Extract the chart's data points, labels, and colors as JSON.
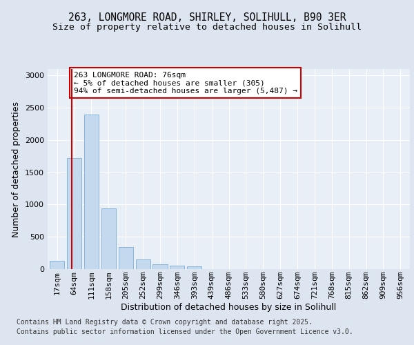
{
  "title_line1": "263, LONGMORE ROAD, SHIRLEY, SOLIHULL, B90 3ER",
  "title_line2": "Size of property relative to detached houses in Solihull",
  "xlabel": "Distribution of detached houses by size in Solihull",
  "ylabel": "Number of detached properties",
  "bar_color": "#c5d9ee",
  "bar_edge_color": "#7aadd4",
  "categories": [
    "17sqm",
    "64sqm",
    "111sqm",
    "158sqm",
    "205sqm",
    "252sqm",
    "299sqm",
    "346sqm",
    "393sqm",
    "439sqm",
    "486sqm",
    "533sqm",
    "580sqm",
    "627sqm",
    "674sqm",
    "721sqm",
    "768sqm",
    "815sqm",
    "862sqm",
    "909sqm",
    "956sqm"
  ],
  "values": [
    130,
    1720,
    2390,
    940,
    340,
    155,
    80,
    50,
    40,
    0,
    0,
    0,
    0,
    0,
    0,
    0,
    0,
    0,
    0,
    0,
    0
  ],
  "red_line_x": 0.85,
  "annotation_text": "263 LONGMORE ROAD: 76sqm\n← 5% of detached houses are smaller (305)\n94% of semi-detached houses are larger (5,487) →",
  "annotation_box_color": "#ffffff",
  "annotation_edge_color": "#cc0000",
  "ylim": [
    0,
    3100
  ],
  "yticks": [
    0,
    500,
    1000,
    1500,
    2000,
    2500,
    3000
  ],
  "footnote_line1": "Contains HM Land Registry data © Crown copyright and database right 2025.",
  "footnote_line2": "Contains public sector information licensed under the Open Government Licence v3.0.",
  "background_color": "#dde6f0",
  "plot_bg_color": "#e8eff7",
  "grid_color": "#ffffff",
  "title_fontsize": 10.5,
  "subtitle_fontsize": 9.5,
  "axis_label_fontsize": 9,
  "tick_fontsize": 8,
  "annotation_fontsize": 8,
  "footnote_fontsize": 7
}
